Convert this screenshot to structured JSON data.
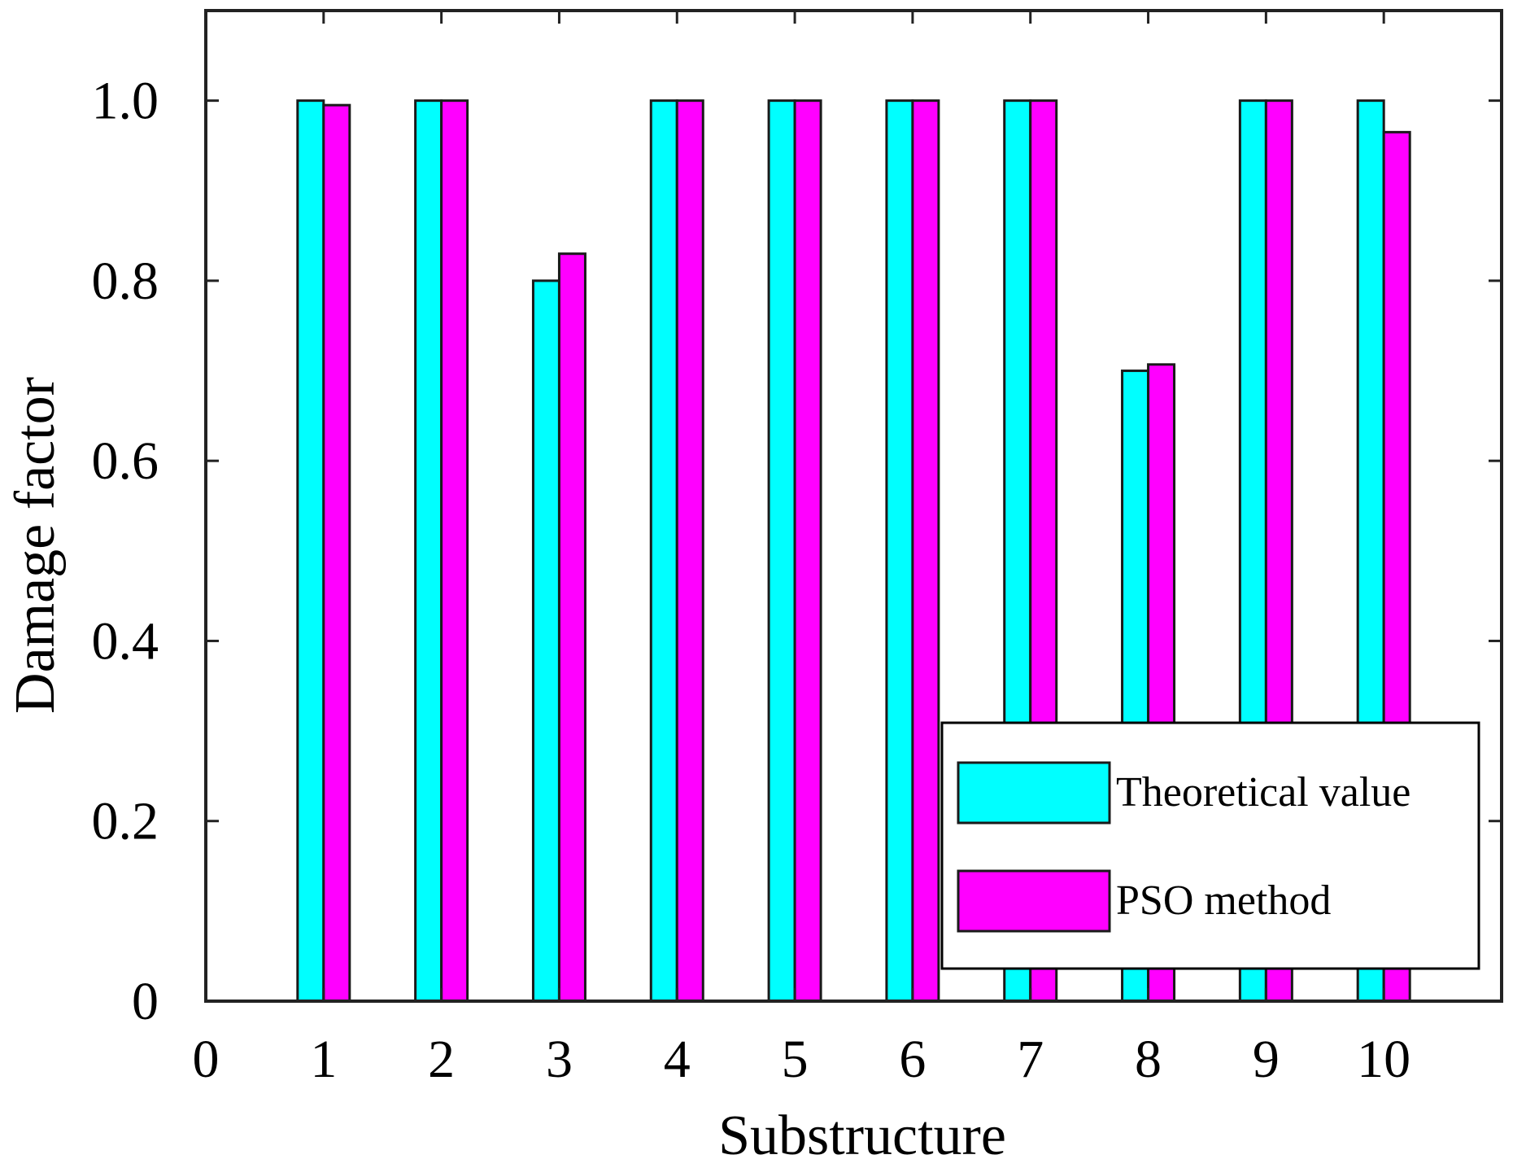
{
  "chart_data": {
    "type": "bar",
    "title": "",
    "xlabel": "Substructure",
    "ylabel": "Damage factor",
    "categories": [
      "1",
      "2",
      "3",
      "4",
      "5",
      "6",
      "7",
      "8",
      "9",
      "10"
    ],
    "series": [
      {
        "name": "Theoretical value",
        "color": "#00FFFF",
        "values": [
          1.0,
          1.0,
          0.8,
          1.0,
          1.0,
          1.0,
          1.0,
          0.7,
          1.0,
          1.0
        ]
      },
      {
        "name": "PSO method",
        "color": "#FF00FF",
        "values": [
          0.995,
          1.0,
          0.83,
          1.0,
          1.0,
          1.0,
          1.0,
          0.707,
          1.0,
          0.965
        ]
      }
    ],
    "xlim": [
      0,
      11
    ],
    "ylim": [
      0,
      1.1
    ],
    "x_ticks": [
      0,
      1,
      2,
      3,
      4,
      5,
      6,
      7,
      8,
      9,
      10
    ],
    "x_tick_labels": [
      "0",
      "1",
      "2",
      "3",
      "4",
      "5",
      "6",
      "7",
      "8",
      "9",
      "10"
    ],
    "y_ticks": [
      0,
      0.2,
      0.4,
      0.6,
      0.8,
      1.0
    ],
    "y_tick_labels": [
      "0",
      "0.2",
      "0.4",
      "0.6",
      "0.8",
      "1.0"
    ],
    "grid": false,
    "legend_position": "bottom-right"
  }
}
